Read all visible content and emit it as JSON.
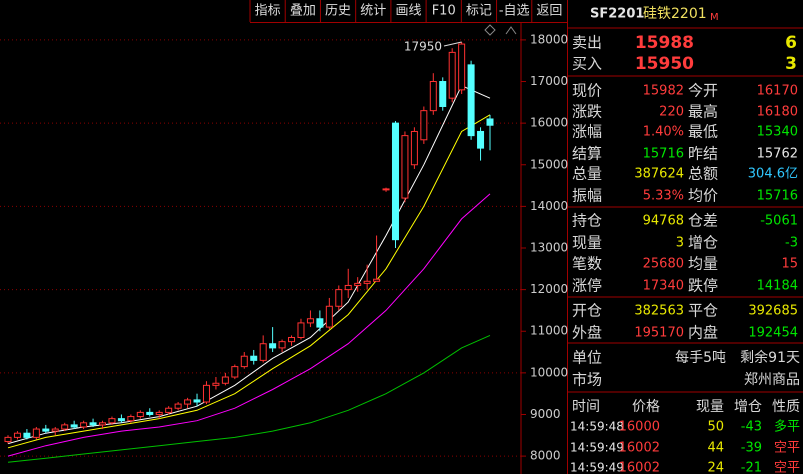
{
  "toolbar": [
    "指标",
    "叠加",
    "历史",
    "统计",
    "画线",
    "F10",
    "标记",
    "-自选",
    "返回"
  ],
  "chart": {
    "ylim": [
      7570,
      18430
    ],
    "yticks": [
      8000,
      9000,
      10000,
      11000,
      12000,
      13000,
      14000,
      15000,
      16000,
      17000,
      18000
    ],
    "peak_label": 17950,
    "candles": [
      [
        8350,
        8500,
        8300,
        8450
      ],
      [
        8450,
        8600,
        8400,
        8550
      ],
      [
        8550,
        8650,
        8400,
        8450
      ],
      [
        8450,
        8700,
        8400,
        8650
      ],
      [
        8650,
        8750,
        8550,
        8600
      ],
      [
        8600,
        8700,
        8500,
        8650
      ],
      [
        8650,
        8800,
        8600,
        8750
      ],
      [
        8750,
        8850,
        8650,
        8700
      ],
      [
        8700,
        8850,
        8650,
        8800
      ],
      [
        8800,
        8900,
        8700,
        8750
      ],
      [
        8750,
        8850,
        8650,
        8800
      ],
      [
        8800,
        8950,
        8750,
        8900
      ],
      [
        8900,
        9000,
        8800,
        8850
      ],
      [
        8850,
        9000,
        8800,
        8950
      ],
      [
        8950,
        9100,
        8900,
        9050
      ],
      [
        9050,
        9150,
        8950,
        9000
      ],
      [
        9000,
        9100,
        8900,
        9050
      ],
      [
        9050,
        9200,
        9000,
        9150
      ],
      [
        9150,
        9300,
        9100,
        9250
      ],
      [
        9250,
        9400,
        9150,
        9350
      ],
      [
        9350,
        9500,
        9200,
        9300
      ],
      [
        9300,
        9800,
        9250,
        9700
      ],
      [
        9700,
        9900,
        9600,
        9750
      ],
      [
        9750,
        10000,
        9700,
        9900
      ],
      [
        9900,
        10200,
        9850,
        10150
      ],
      [
        10150,
        10500,
        10100,
        10400
      ],
      [
        10400,
        10550,
        10200,
        10300
      ],
      [
        10300,
        10900,
        10250,
        10700
      ],
      [
        10700,
        11100,
        10500,
        10600
      ],
      [
        10600,
        10800,
        10500,
        10750
      ],
      [
        10750,
        10900,
        10650,
        10850
      ],
      [
        10850,
        11300,
        10800,
        11200
      ],
      [
        11200,
        11500,
        11100,
        11300
      ],
      [
        11300,
        11500,
        11000,
        11100
      ],
      [
        11100,
        11800,
        11050,
        11600
      ],
      [
        11600,
        12100,
        11500,
        12000
      ],
      [
        12000,
        12500,
        11800,
        12100
      ],
      [
        12100,
        12300,
        11950,
        12150
      ],
      [
        12150,
        12600,
        12000,
        12200
      ],
      [
        12200,
        13300,
        12200,
        12250
      ],
      [
        14400,
        14450,
        14350,
        14420
      ],
      [
        16000,
        16050,
        13000,
        13200
      ],
      [
        14200,
        15800,
        14100,
        15700
      ],
      [
        15000,
        15900,
        14900,
        15800
      ],
      [
        15600,
        16400,
        15500,
        16300
      ],
      [
        16300,
        17200,
        16200,
        17000
      ],
      [
        17000,
        17100,
        16300,
        16400
      ],
      [
        16600,
        17800,
        16500,
        17700
      ],
      [
        16800,
        17950,
        16700,
        17900
      ],
      [
        17400,
        17500,
        15600,
        15700
      ],
      [
        15800,
        15900,
        15100,
        15400
      ],
      [
        16100,
        16200,
        15350,
        15950
      ]
    ],
    "ma_index": [
      0,
      4,
      8,
      12,
      16,
      20,
      24,
      28,
      32,
      36,
      40,
      44,
      48,
      51
    ],
    "ma": [
      {
        "color": "#ffffff",
        "values": [
          8300,
          8550,
          8700,
          8800,
          8950,
          9200,
          9700,
          10350,
          10850,
          11700,
          13300,
          15000,
          16900,
          16600
        ]
      },
      {
        "color": "#ffff00",
        "values": [
          8200,
          8450,
          8600,
          8750,
          8900,
          9100,
          9500,
          10100,
          10650,
          11400,
          12500,
          14000,
          15800,
          16200
        ]
      },
      {
        "color": "#ff00ff",
        "values": [
          8000,
          8250,
          8450,
          8600,
          8700,
          8850,
          9150,
          9600,
          10100,
          10700,
          11500,
          12500,
          13700,
          14300
        ]
      },
      {
        "color": "#00c000",
        "values": [
          7850,
          7950,
          8050,
          8150,
          8250,
          8350,
          8450,
          8600,
          8800,
          9100,
          9500,
          10000,
          10600,
          10900
        ]
      }
    ]
  },
  "quote": {
    "code": "SF2201",
    "name": "硅铁2201",
    "flag": "M",
    "bid_ask": [
      [
        "卖出",
        "15988",
        "6"
      ],
      [
        "买入",
        "15950",
        "3"
      ]
    ],
    "stats": [
      [
        "现价",
        "15982",
        "今开",
        "16170"
      ],
      [
        "涨跌",
        "220",
        "最高",
        "16180"
      ],
      [
        "涨幅",
        "1.40%",
        "最低",
        "15340"
      ],
      [
        "结算",
        "15716",
        "昨结",
        "15762"
      ],
      [
        "总量",
        "387624",
        "总额",
        "304.6亿"
      ],
      [
        "振幅",
        "5.33%",
        "均价",
        "15716"
      ],
      [
        "持仓",
        "94768",
        "仓差",
        "-5061"
      ],
      [
        "现量",
        "3",
        "增仓",
        "-3"
      ],
      [
        "笔数",
        "25680",
        "均量",
        "15"
      ],
      [
        "涨停",
        "17340",
        "跌停",
        "14184"
      ],
      [
        "开仓",
        "382563",
        "平仓",
        "392685"
      ],
      [
        "外盘",
        "195170",
        "内盘",
        "192454"
      ]
    ],
    "info": [
      [
        "单位",
        "每手5吨",
        "剩余91天"
      ],
      [
        "市场",
        "郑州商品"
      ]
    ],
    "ticks_header": [
      "时间",
      "价格",
      "现量",
      "增仓",
      "性质"
    ],
    "ticks": [
      [
        "14:59:48",
        "16000",
        "50",
        "-43",
        "多平"
      ],
      [
        "14:59:49",
        "16002",
        "44",
        "-39",
        "空平"
      ],
      [
        "14:59:49",
        "16002",
        "24",
        "-21",
        "空平"
      ]
    ]
  }
}
